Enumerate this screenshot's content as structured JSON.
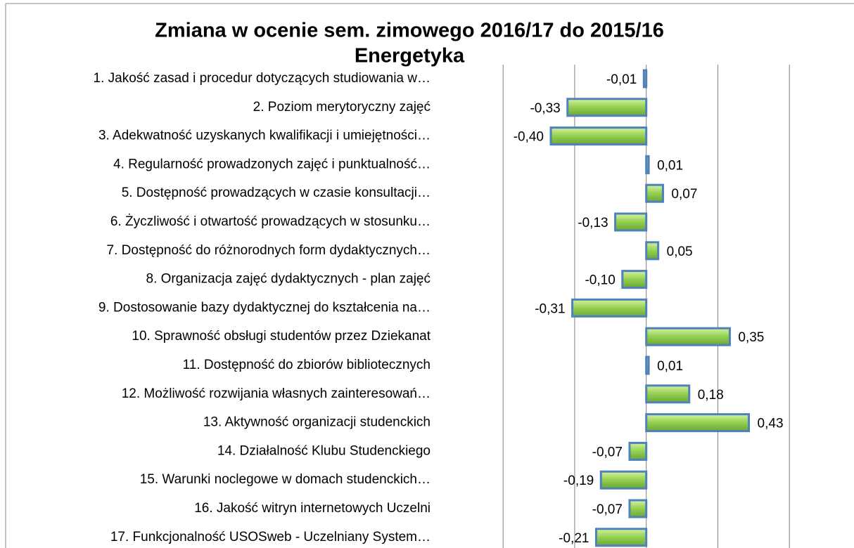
{
  "chart_data": {
    "type": "barh",
    "title": "Zmiana w ocenie sem. zimowego 2016/17 do 2015/16",
    "subtitle": "Energetyka",
    "categories": [
      "1. Jakość zasad i procedur dotyczących studiowania w…",
      "2. Poziom merytoryczny zajęć",
      "3. Adekwatność uzyskanych kwalifikacji i umiejętności…",
      "4. Regularność prowadzonych zajęć i punktualność…",
      "5. Dostępność prowadzących w czasie konsultacji…",
      "6. Życzliwość i otwartość prowadzących w stosunku…",
      "7. Dostępność do różnorodnych form dydaktycznych…",
      "8. Organizacja zajęć dydaktycznych - plan zajęć",
      "9. Dostosowanie bazy dydaktycznej do kształcenia na…",
      "10. Sprawność obsługi studentów przez Dziekanat",
      "11. Dostępność do zbiorów bibliotecznych",
      "12. Możliwość rozwijania własnych zainteresowań…",
      "13. Aktywność organizacji studenckich",
      "14. Działalność Klubu Studenckiego",
      "15. Warunki noclegowe w domach studenckich…",
      "16. Jakość witryn internetowych Uczelni",
      "17. Funkcjonalność USOSweb - Uczelniany System…"
    ],
    "values": [
      -0.01,
      -0.33,
      -0.4,
      0.01,
      0.07,
      -0.13,
      0.05,
      -0.1,
      -0.31,
      0.35,
      0.01,
      0.18,
      0.43,
      -0.07,
      -0.19,
      -0.07,
      -0.21
    ],
    "value_labels": [
      "-0,01",
      "-0,33",
      "-0,40",
      "0,01",
      "0,07",
      "-0,13",
      "0,05",
      "-0,10",
      "-0,31",
      "0,35",
      "0,01",
      "0,18",
      "0,43",
      "-0,07",
      "-0,19",
      "-0,07",
      "-0,21"
    ],
    "color": "#92d050",
    "edge_color": "#4f81bd",
    "xlim": [
      -0.63,
      0.85
    ],
    "xticks": [
      -0.6,
      -0.3,
      0,
      0.3,
      0.6
    ],
    "grid": true
  }
}
